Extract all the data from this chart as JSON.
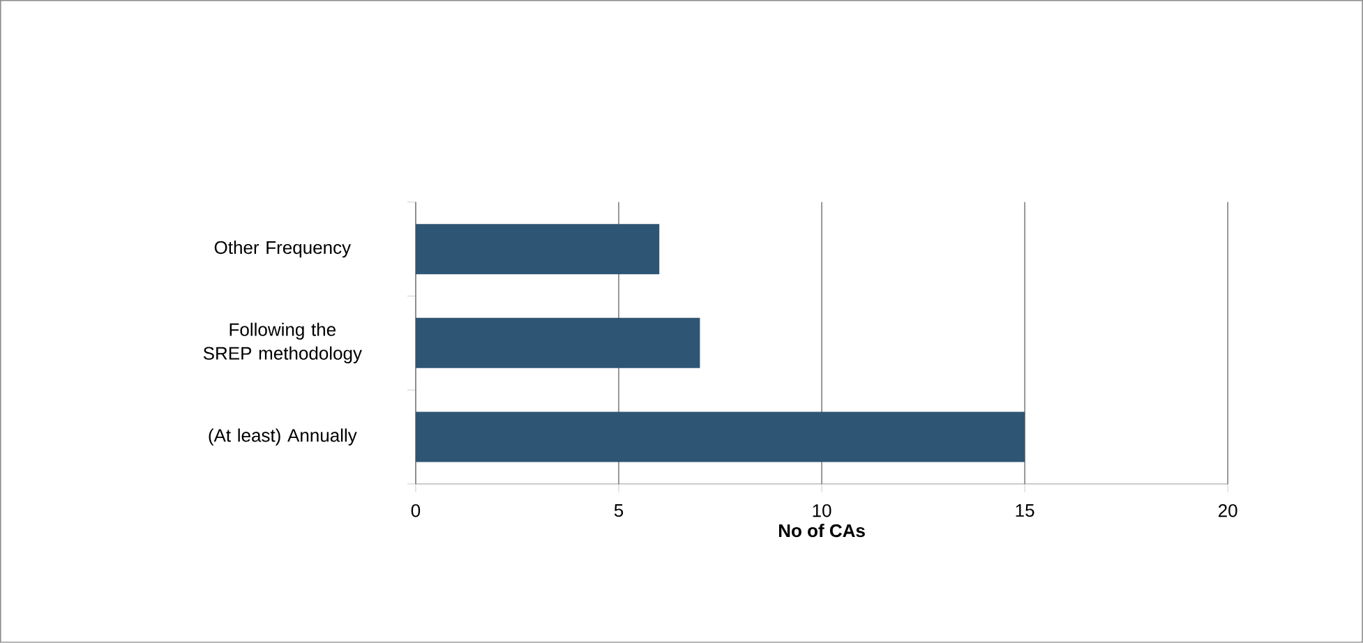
{
  "chart_data": {
    "type": "bar",
    "orientation": "horizontal",
    "categories": [
      "Other Frequency",
      "Following the SREP methodology",
      "(At least) Annually"
    ],
    "values": [
      6,
      7,
      15
    ],
    "color": "#2e5573",
    "xlim": [
      0,
      20
    ],
    "xticks": [
      0,
      5,
      10,
      15,
      20
    ],
    "xlabel": "No of CAs",
    "grid": "x"
  }
}
